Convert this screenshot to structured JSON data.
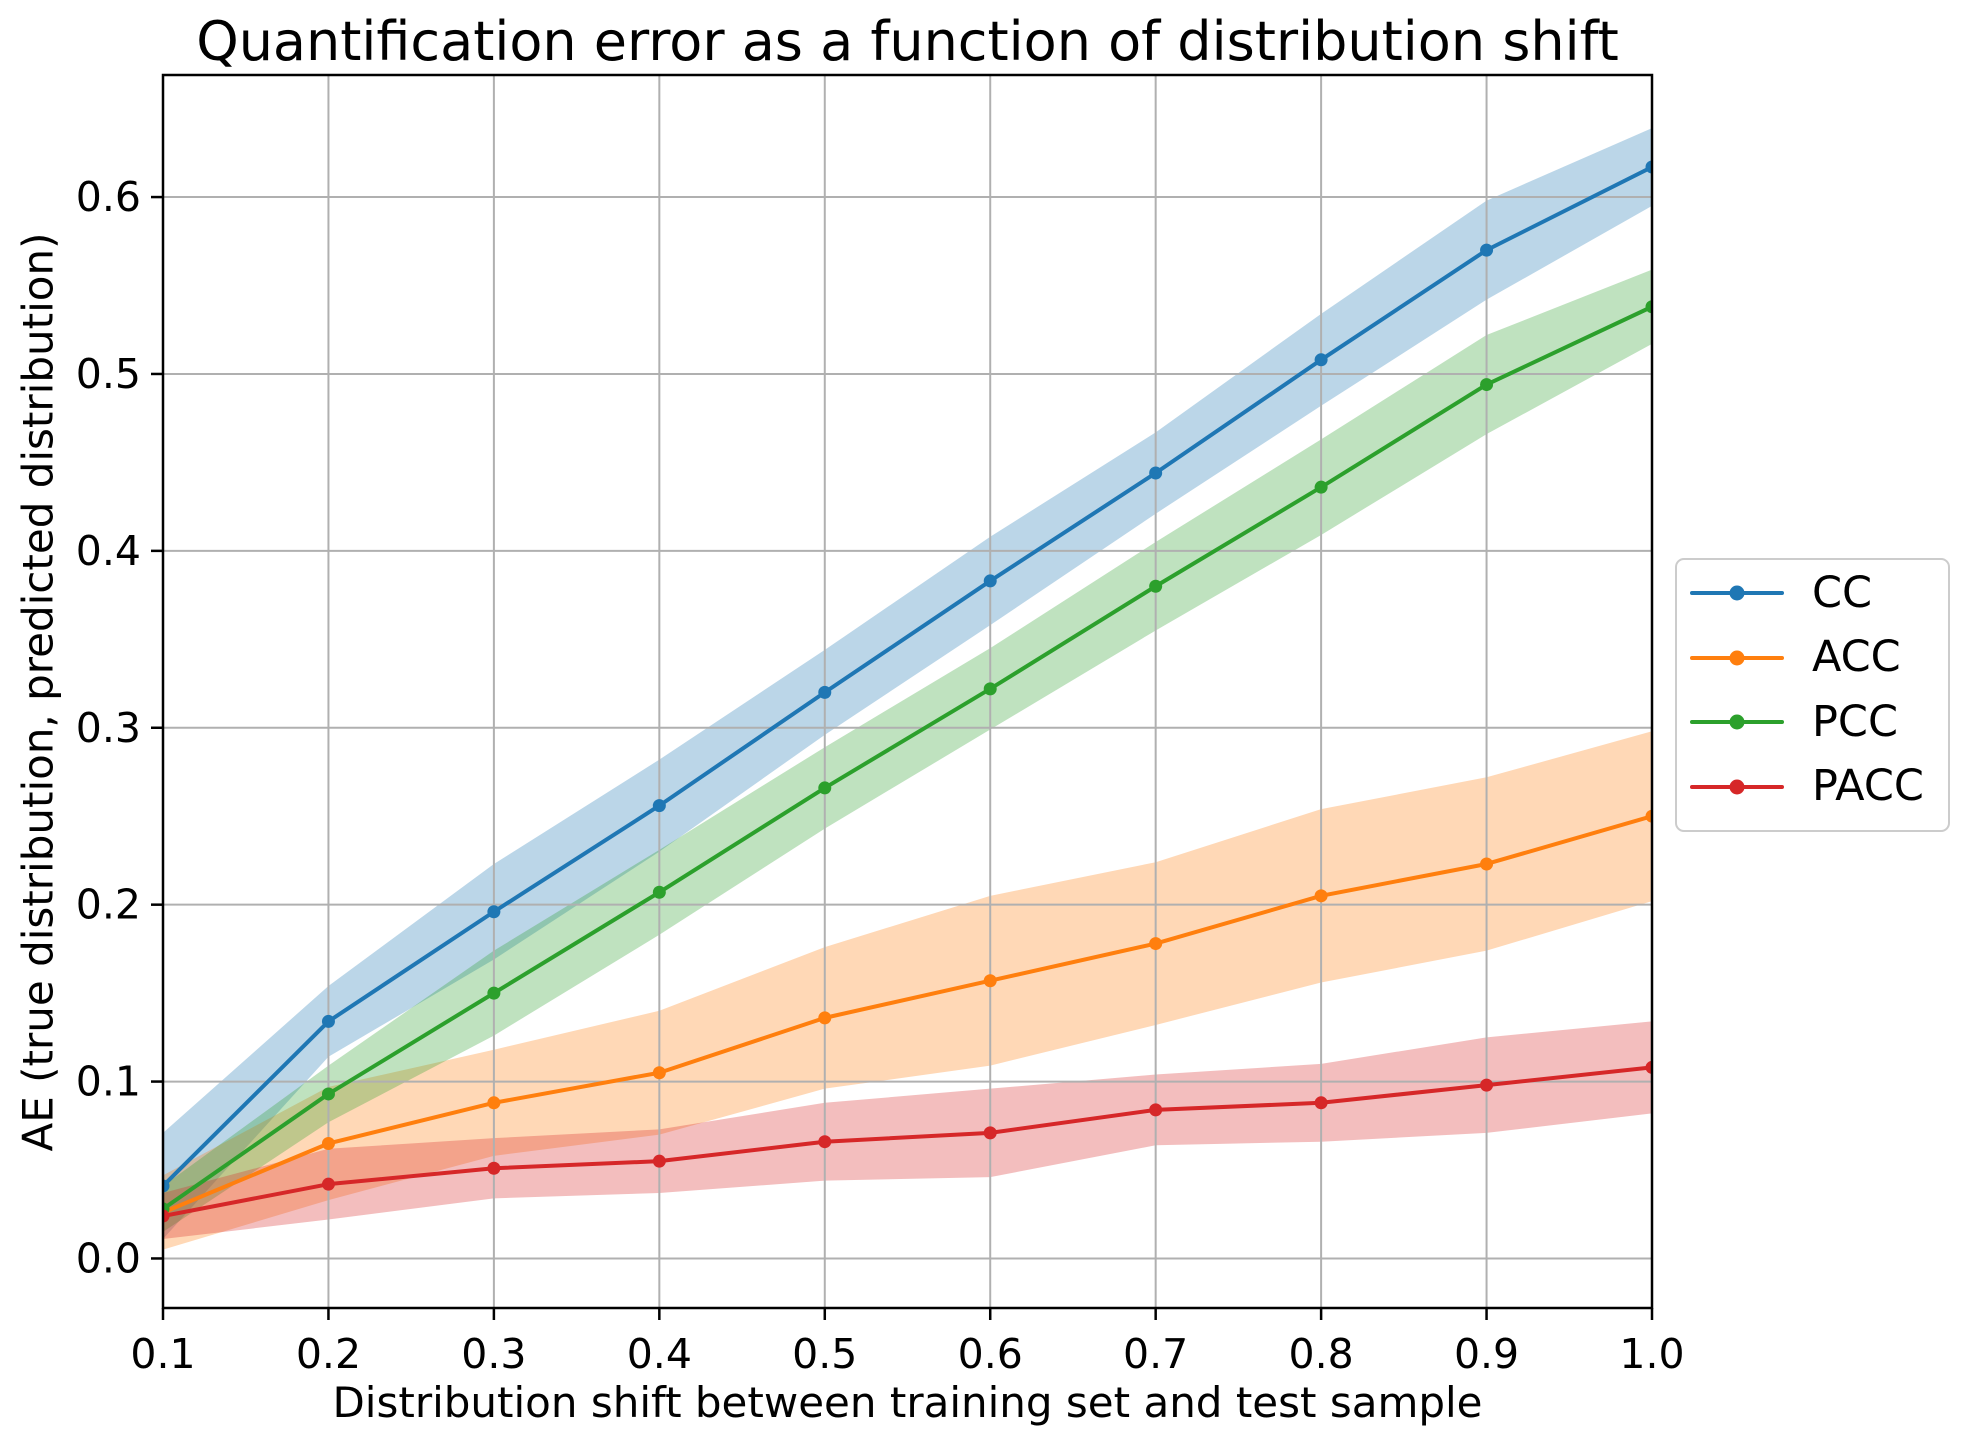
{
  "chart_data": {
    "type": "line",
    "title": "Quantification error as a function of distribution shift",
    "xlabel": "Distribution shift between training set and test sample",
    "ylabel": "AE (true distribution, predicted distribution)",
    "x": [
      0.1,
      0.2,
      0.3,
      0.4,
      0.5,
      0.6,
      0.7,
      0.8,
      0.9,
      1.0
    ],
    "xtick_labels": [
      "0.1",
      "0.2",
      "0.3",
      "0.4",
      "0.5",
      "0.6",
      "0.7",
      "0.8",
      "0.9",
      "1.0"
    ],
    "yticks": [
      0.0,
      0.1,
      0.2,
      0.3,
      0.4,
      0.5,
      0.6
    ],
    "ytick_labels": [
      "0.0",
      "0.1",
      "0.2",
      "0.3",
      "0.4",
      "0.5",
      "0.6"
    ],
    "xlim": [
      0.1,
      1.0
    ],
    "ylim": [
      -0.028,
      0.669
    ],
    "grid": true,
    "band_opacity": 0.3,
    "legend": {
      "position": "right-outside",
      "entries": [
        "CC",
        "ACC",
        "PCC",
        "PACC"
      ]
    },
    "series": [
      {
        "name": "CC",
        "color": "#1f77b4",
        "values": [
          0.041,
          0.134,
          0.196,
          0.256,
          0.32,
          0.383,
          0.444,
          0.508,
          0.57,
          0.617
        ],
        "band_halfwidth": [
          0.03,
          0.02,
          0.027,
          0.026,
          0.024,
          0.025,
          0.023,
          0.026,
          0.028,
          0.022
        ]
      },
      {
        "name": "ACC",
        "color": "#ff7f0e",
        "values": [
          0.026,
          0.065,
          0.088,
          0.105,
          0.136,
          0.157,
          0.178,
          0.205,
          0.223,
          0.25
        ],
        "band_halfwidth": [
          0.021,
          0.032,
          0.03,
          0.035,
          0.04,
          0.048,
          0.046,
          0.049,
          0.049,
          0.048
        ]
      },
      {
        "name": "PCC",
        "color": "#2ca02c",
        "values": [
          0.028,
          0.093,
          0.15,
          0.207,
          0.266,
          0.322,
          0.38,
          0.436,
          0.494,
          0.538
        ],
        "band_halfwidth": [
          0.013,
          0.016,
          0.024,
          0.024,
          0.023,
          0.023,
          0.025,
          0.027,
          0.028,
          0.021
        ]
      },
      {
        "name": "PACC",
        "color": "#d62728",
        "values": [
          0.024,
          0.042,
          0.051,
          0.055,
          0.066,
          0.071,
          0.084,
          0.088,
          0.098,
          0.108
        ],
        "band_halfwidth": [
          0.013,
          0.02,
          0.017,
          0.018,
          0.022,
          0.025,
          0.02,
          0.022,
          0.027,
          0.026
        ]
      }
    ]
  },
  "colors": {
    "background": "#ffffff",
    "grid": "#b0b0b0",
    "spine": "#000000",
    "tick": "#000000",
    "text": "#000000",
    "legend_border": "#cccccc"
  }
}
